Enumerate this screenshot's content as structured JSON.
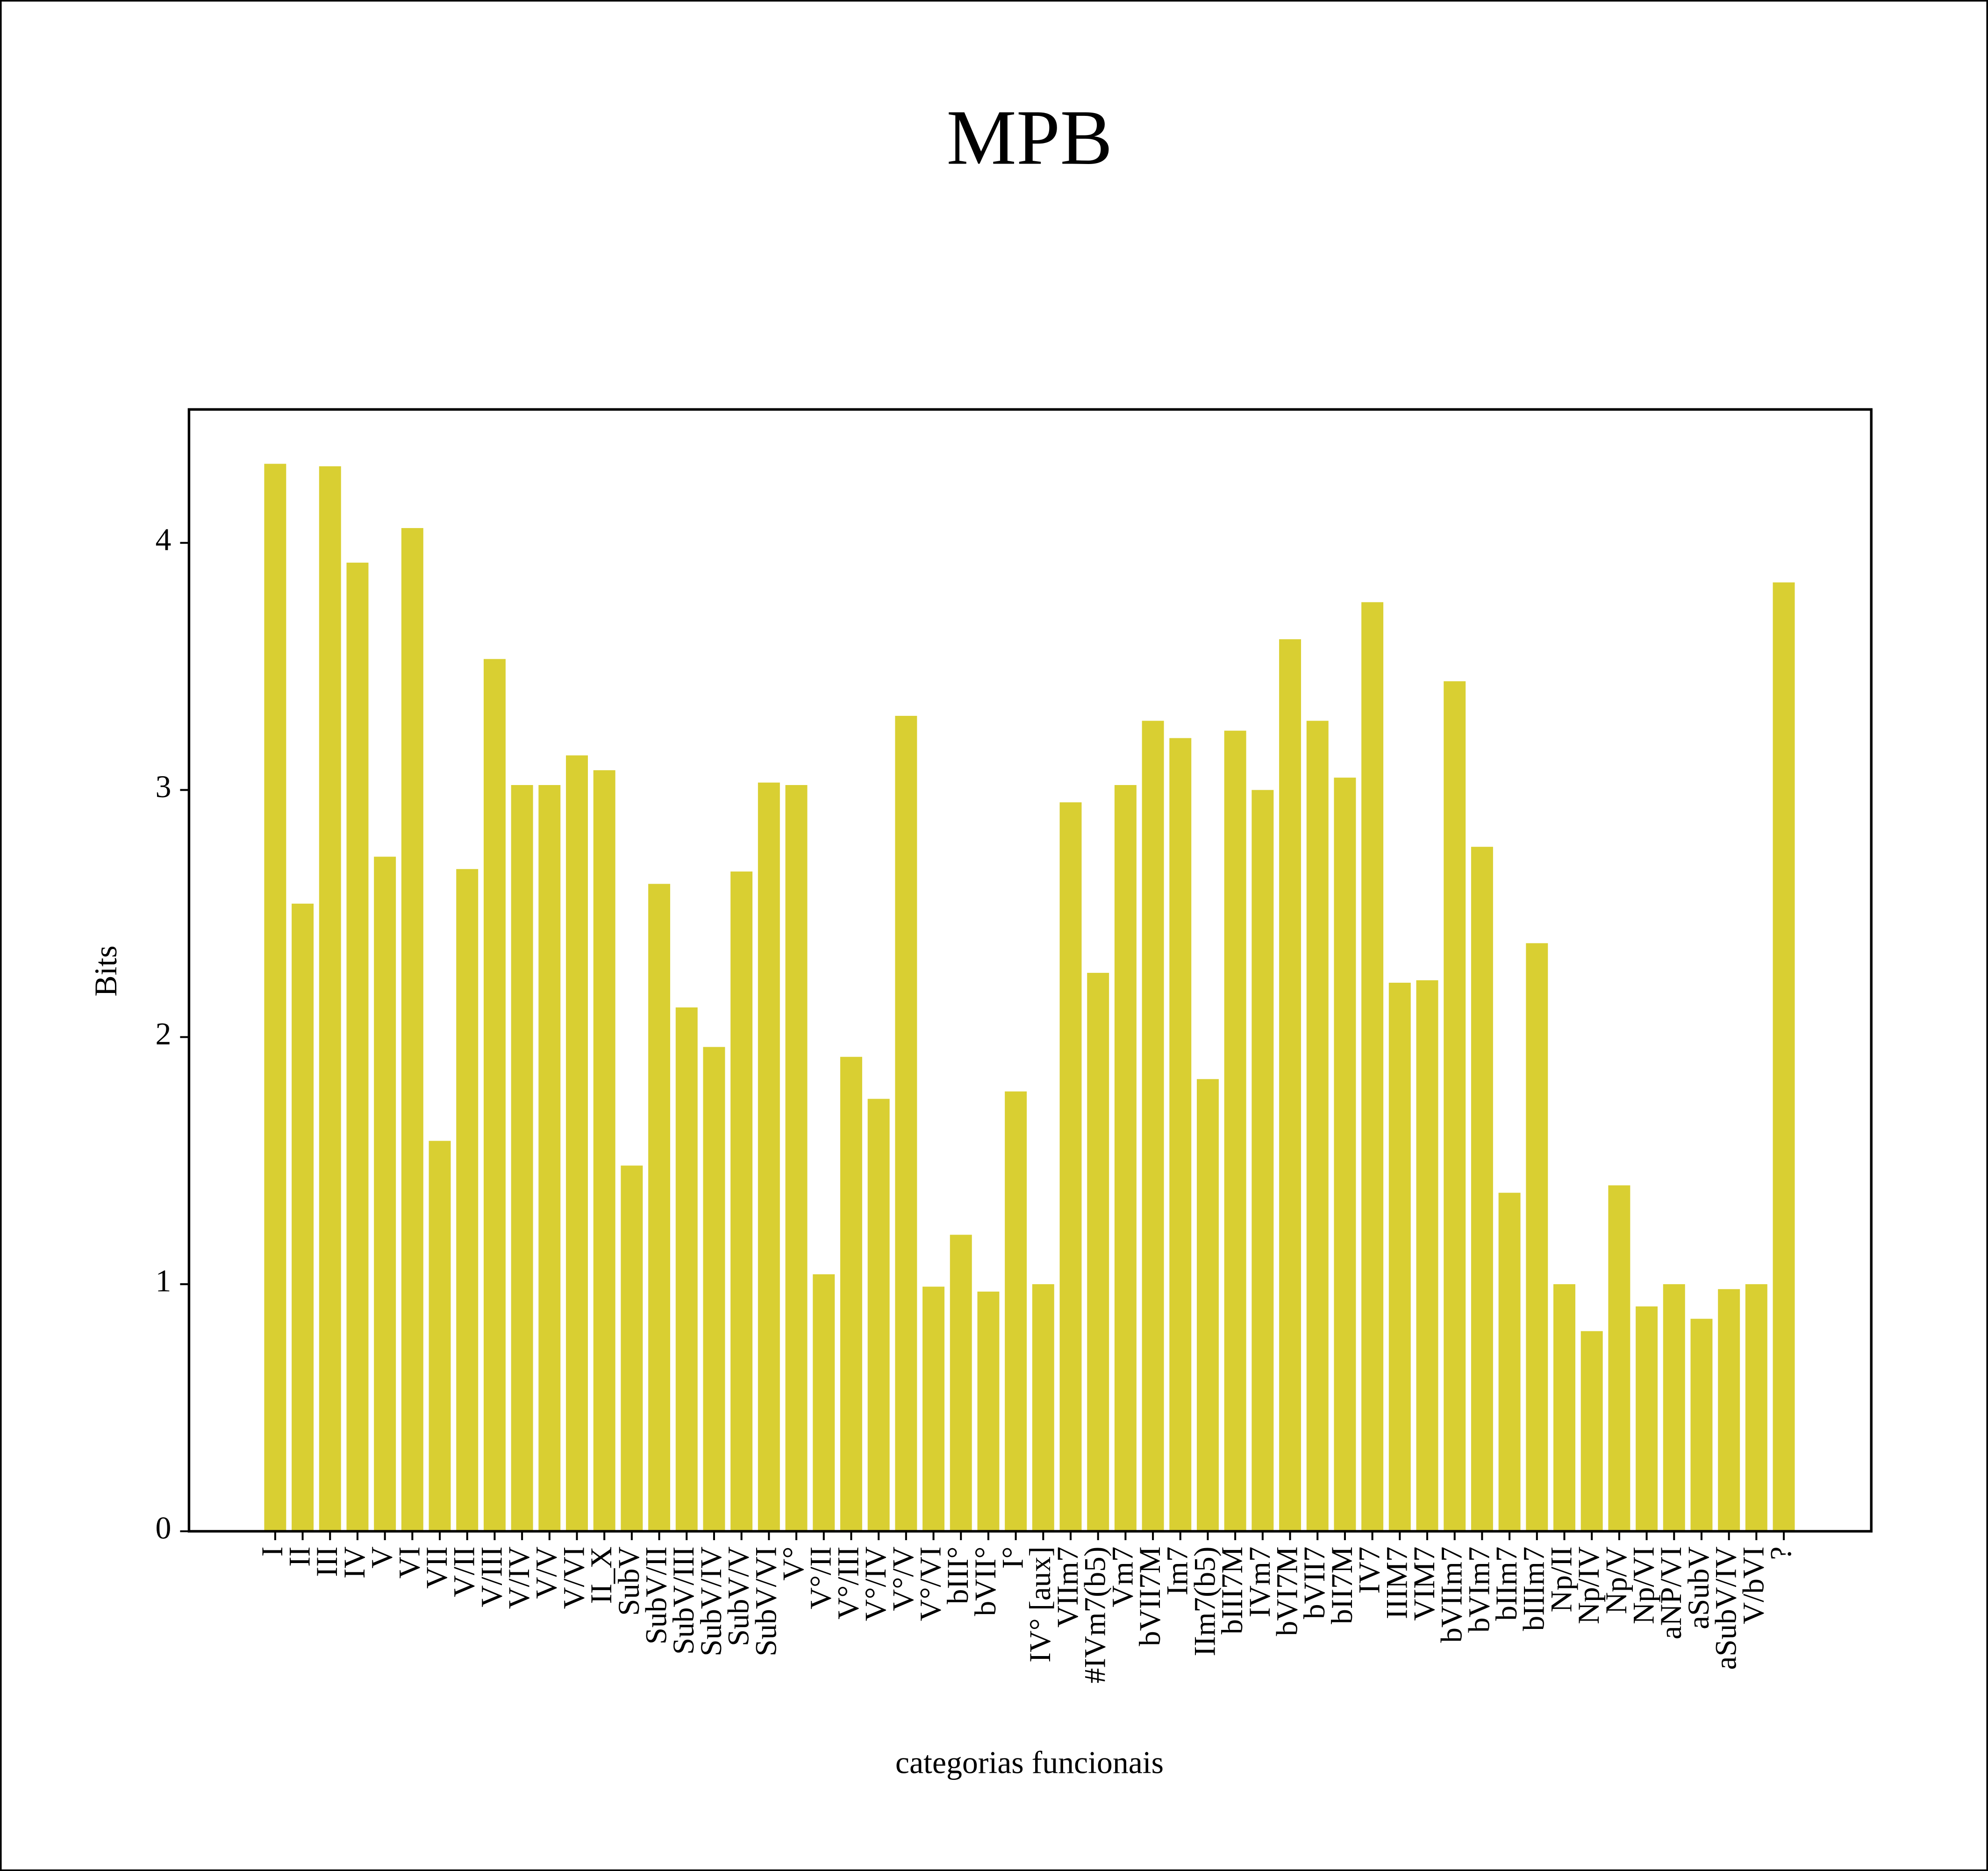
{
  "chart_data": {
    "type": "bar",
    "title": "MPB",
    "xlabel": "categorias funcionais",
    "ylabel": "Bits",
    "categories": [
      "I",
      "II",
      "III",
      "IV",
      "V",
      "VI",
      "VII",
      "V/II",
      "V/III",
      "V/IV",
      "V/V",
      "V/VI",
      "II_X",
      "SubV",
      "SubV/II",
      "SubV/III",
      "SubV/IV",
      "SubV/V",
      "SubV/VI",
      "V°",
      "V°/II",
      "V°/III",
      "V°/IV",
      "V°/V",
      "V°/VI",
      "bIII°",
      "bVII°",
      "I°",
      "IV° [aux]",
      "VIIm7",
      "#IVm7(b5)",
      "Vm7",
      "bVII7M",
      "Im7",
      "IIm7(b5)",
      "bIII7M",
      "IVm7",
      "bVI7M",
      "bVII7",
      "bII7M",
      "IV7",
      "IIIM7",
      "VIM7",
      "bVIIm7",
      "bVIm7",
      "bIIm7",
      "bIIIm7",
      "Np/II",
      "Np/IV",
      "Np/V",
      "Np/VI",
      "aNP/VI",
      "aSubV",
      "aSubV/IV",
      "V/bVI",
      "?"
    ],
    "values": [
      4.32,
      2.54,
      4.31,
      3.92,
      2.73,
      4.06,
      1.58,
      2.68,
      3.53,
      3.02,
      3.02,
      3.14,
      3.08,
      1.48,
      2.62,
      2.12,
      1.96,
      2.67,
      3.03,
      3.02,
      1.04,
      1.92,
      1.75,
      3.3,
      0.99,
      1.2,
      0.97,
      1.78,
      1.0,
      2.95,
      2.26,
      3.02,
      3.28,
      3.21,
      1.83,
      3.24,
      3.0,
      3.61,
      3.28,
      3.05,
      3.76,
      2.22,
      2.23,
      3.44,
      2.77,
      1.37,
      2.38,
      1.0,
      0.81,
      1.4,
      0.91,
      1.0,
      0.86,
      0.98,
      1.0,
      3.84
    ],
    "color": "#d9cf32",
    "title_color": "#1f2a8c",
    "ylim": [
      0,
      4.54
    ],
    "yticks": [
      0,
      1,
      2,
      3,
      4
    ]
  }
}
